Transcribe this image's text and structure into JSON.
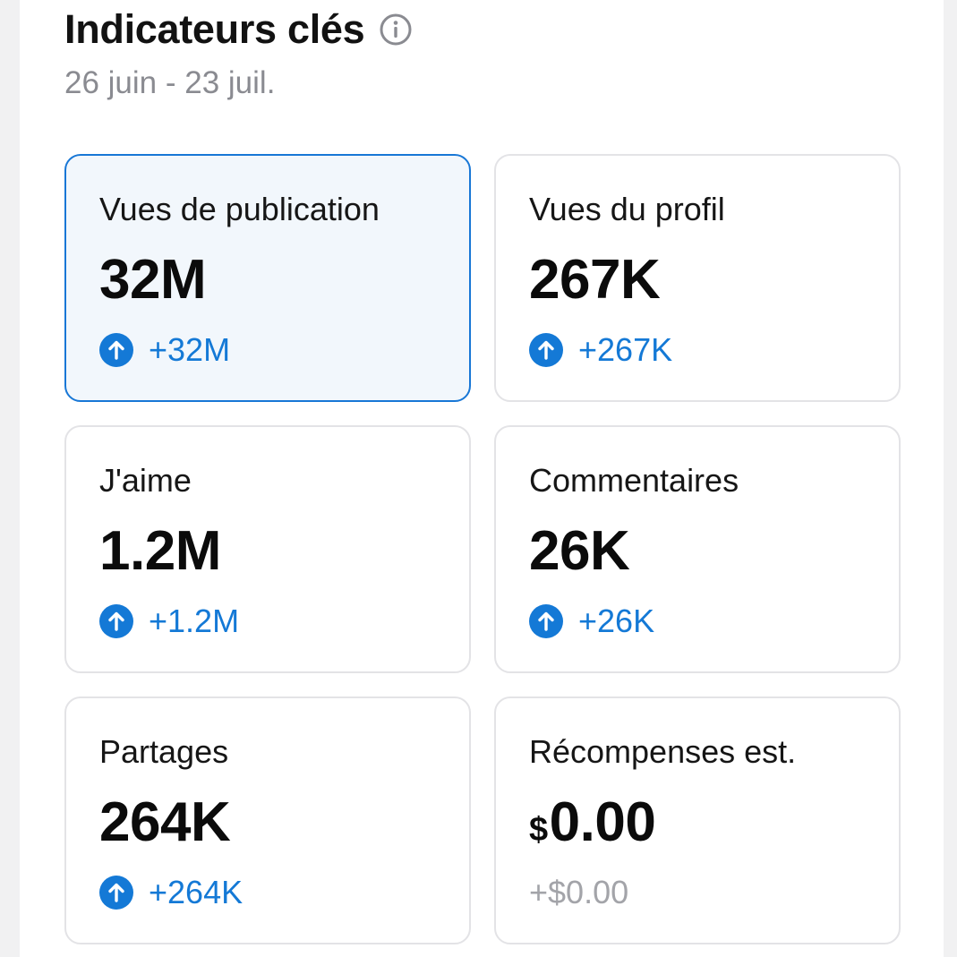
{
  "header": {
    "title": "Indicateurs clés",
    "date_range": "26 juin - 23 juil."
  },
  "colors": {
    "accent": "#1479d6",
    "selected_border": "#1877d6",
    "selected_bg": "#f2f7fc",
    "card_border": "#e3e3e6",
    "muted_text": "#8a8b91"
  },
  "metrics": [
    {
      "label": "Vues de publication",
      "value": "32M",
      "delta": "+32M",
      "trend_icon": "arrow-up-circle-icon",
      "selected": true
    },
    {
      "label": "Vues du profil",
      "value": "267K",
      "delta": "+267K",
      "trend_icon": "arrow-up-circle-icon",
      "selected": false
    },
    {
      "label": "J'aime",
      "value": "1.2M",
      "delta": "+1.2M",
      "trend_icon": "arrow-up-circle-icon",
      "selected": false
    },
    {
      "label": "Commentaires",
      "value": "26K",
      "delta": "+26K",
      "trend_icon": "arrow-up-circle-icon",
      "selected": false
    },
    {
      "label": "Partages",
      "value": "264K",
      "delta": "+264K",
      "trend_icon": "arrow-up-circle-icon",
      "selected": false
    },
    {
      "label": "Récompenses est.",
      "currency": "$",
      "value": "0.00",
      "delta": "+$0.00",
      "selected": false
    }
  ]
}
